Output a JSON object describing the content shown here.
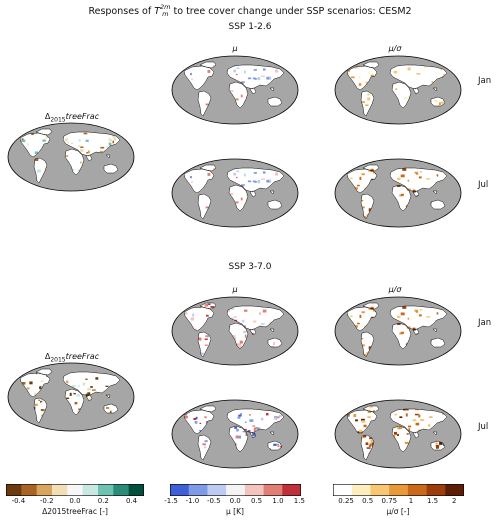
{
  "header": {
    "title": "Responses of T_m^2m to tree cover change under SSP scenarios: CESM2"
  },
  "scenarios": [
    {
      "label": "SSP 1-2.6"
    },
    {
      "label": "SSP 3-7.0"
    }
  ],
  "columns": {
    "mu": "μ",
    "mu_sigma": "μ/σ"
  },
  "rows": {
    "jan": "Jan",
    "jul": "Jul"
  },
  "map_label": "Δ2015treeFrac",
  "colorbars": [
    {
      "label": "Δ2015treeFrac [-]",
      "ticks": [
        "-0.4",
        "-0.2",
        "0.0",
        "0.2",
        "0.4"
      ],
      "colors": [
        "#6b3a0e",
        "#a86424",
        "#d9a45d",
        "#f3dfb6",
        "#f7f7f7",
        "#c7e9e2",
        "#6fc2b2",
        "#2a8b78",
        "#034f3e"
      ]
    },
    {
      "label": "μ [K]",
      "ticks": [
        "-1.5",
        "-1.0",
        "-0.5",
        "0.0",
        "0.5",
        "1.0",
        "1.5"
      ],
      "colors": [
        "#3f5fd6",
        "#7f9be6",
        "#bccbf1",
        "#f4f4f4",
        "#f2c4bd",
        "#e27f74",
        "#c0303a"
      ]
    },
    {
      "label": "μ/σ [-]",
      "ticks": [
        "0.25",
        "0.5",
        "0.75",
        "1",
        "1.5",
        "2"
      ],
      "colors": [
        "#ffffff",
        "#fdeec0",
        "#f7c773",
        "#e89a3a",
        "#c86a1a",
        "#9c3d0c",
        "#5e1d05"
      ]
    }
  ],
  "palette": {
    "ocean": "#a6a6a6",
    "land": "#ffffff",
    "coast": "#111111"
  }
}
